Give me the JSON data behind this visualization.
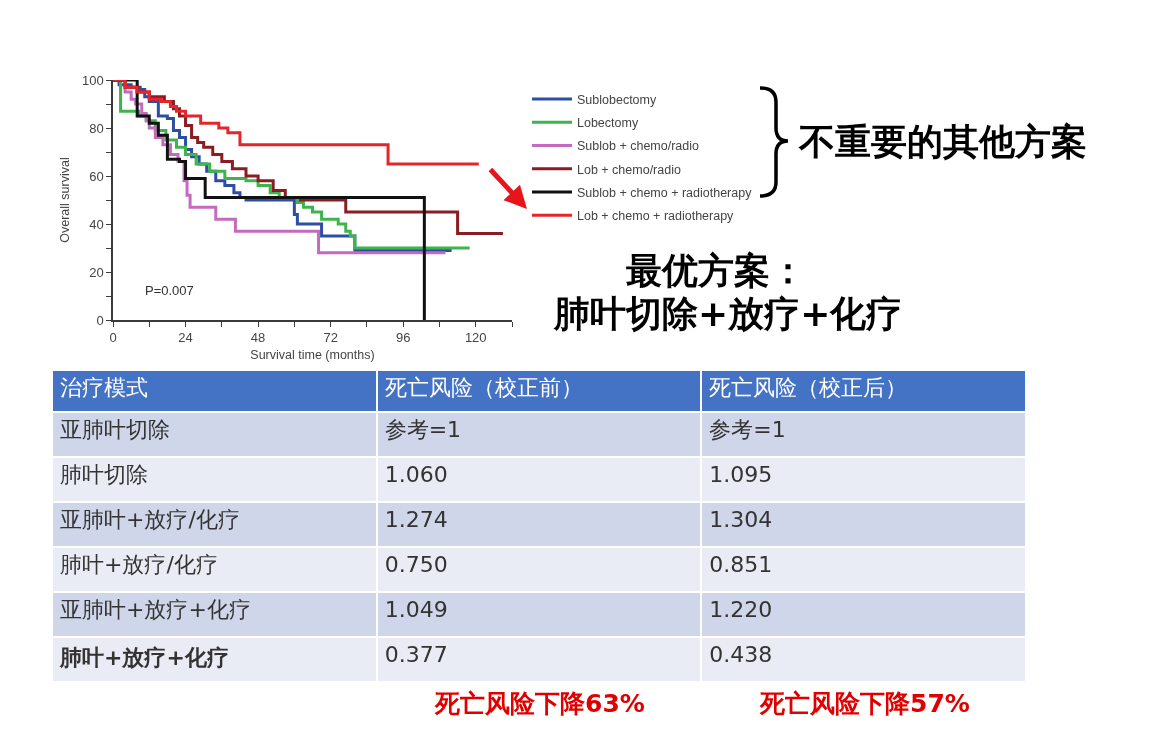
{
  "chart_data": [
    {
      "type": "step",
      "xlabel": "Survival time (months)",
      "ylabel": "Overall survival",
      "xlim": [
        0,
        132
      ],
      "ylim": [
        0,
        100
      ],
      "xticks": [
        0,
        {
          "value": 12,
          "label": null
        },
        24,
        {
          "value": 36,
          "label": null
        },
        48,
        {
          "value": 60,
          "label": null
        },
        72,
        {
          "value": 84,
          "label": null
        },
        96,
        {
          "value": 108,
          "label": null
        },
        120,
        {
          "value": 132,
          "label": null
        }
      ],
      "yticks": [
        0,
        {
          "value": 10,
          "label": null
        },
        20,
        {
          "value": 30,
          "label": null
        },
        40,
        {
          "value": 50,
          "label": null
        },
        60,
        {
          "value": 70,
          "label": null
        },
        80,
        {
          "value": 90,
          "label": null
        },
        100
      ],
      "legend": "right",
      "series": [
        {
          "name": "Sublobectomy",
          "color": "#2c4ea3",
          "x": [
            0,
            2,
            6,
            9,
            10.5,
            12,
            15,
            18,
            20,
            22,
            24,
            26,
            28.5,
            31,
            34,
            37,
            40,
            42,
            44,
            60,
            61,
            69,
            80,
            112
          ],
          "values": [
            100,
            98,
            97,
            96,
            93,
            91,
            85,
            84,
            79,
            76,
            71,
            68,
            65,
            62,
            58,
            56,
            53,
            51,
            50,
            44,
            40,
            35,
            29,
            29
          ]
        },
        {
          "name": "Lobectomy",
          "color": "#3db54a",
          "x": [
            0,
            2.5,
            8.5,
            11,
            14,
            17.5,
            21,
            24,
            27.5,
            32,
            37,
            44,
            48,
            52,
            55,
            61,
            63,
            66,
            69,
            74.5,
            77,
            78.5,
            80,
            118
          ],
          "values": [
            100,
            87,
            85,
            83,
            79,
            75,
            72,
            69,
            65,
            62,
            59,
            58,
            56,
            53,
            51,
            49,
            47,
            45,
            42,
            40,
            37,
            35,
            30,
            30
          ]
        },
        {
          "name": "Sublob + chemo/radio",
          "color": "#c46bbf",
          "x": [
            0,
            4,
            6,
            7.5,
            9.5,
            11,
            12,
            14,
            16.5,
            19,
            21.5,
            23.5,
            24.5,
            25.5,
            34,
            40.5,
            68,
            110
          ],
          "values": [
            100,
            95,
            92,
            90,
            86,
            83,
            80,
            76,
            73,
            69,
            66,
            58,
            52,
            47,
            42,
            37,
            28,
            28
          ]
        },
        {
          "name": "Lob + chemo/radio",
          "color": "#8b1c24",
          "x": [
            0,
            4,
            8,
            12,
            17,
            20,
            22,
            24,
            26,
            28,
            30,
            33,
            36,
            39.5,
            44,
            48,
            53,
            57,
            62,
            77,
            114,
            129
          ],
          "values": [
            100,
            97,
            95,
            93,
            91,
            88,
            85,
            81,
            76,
            74,
            72,
            69,
            66,
            63,
            60,
            58,
            54,
            51,
            50,
            45,
            36,
            36
          ]
        },
        {
          "name": "Sublob + chemo + radiotherapy",
          "color": "#111111",
          "x": [
            0,
            8,
            12,
            15,
            18,
            22,
            24,
            30.5,
            103
          ],
          "values": [
            100,
            85,
            82,
            77,
            67,
            66,
            59,
            51,
            0
          ]
        },
        {
          "name": "Lob + chemo + radiotherapy",
          "color": "#e4262a",
          "x": [
            0,
            4,
            8,
            12,
            16,
            19,
            21,
            24,
            29,
            35,
            38,
            42,
            91,
            121
          ],
          "values": [
            100,
            97,
            95,
            92,
            91,
            89,
            87,
            85,
            82,
            80,
            78,
            73,
            65,
            65
          ]
        }
      ],
      "annotations": [
        "P=0.007",
        "不重要的其他方案",
        "最优方案：",
        "肺叶切除+放疗+化疗"
      ]
    },
    {
      "type": "other",
      "ylabel": "治疗模式",
      "categories": [
        "死亡风险（校正前）",
        "死亡风险（校正后）"
      ],
      "y_categories": [
        "亚肺叶切除",
        "肺叶切除",
        "亚肺叶+放疗/化疗",
        "肺叶+放疗/化疗",
        "亚肺叶+放疗+化疗",
        "肺叶+放疗+化疗"
      ],
      "cell_labels": [
        [
          "参考=1",
          "参考=1"
        ],
        [
          "1.060",
          "1.095"
        ],
        [
          "1.274",
          "1.304"
        ],
        [
          "0.750",
          "0.851"
        ],
        [
          "1.049",
          "1.220"
        ],
        [
          "0.377",
          "0.438"
        ]
      ],
      "annotations": [
        "死亡风险下降63%",
        "死亡风险下降57%"
      ]
    }
  ]
}
